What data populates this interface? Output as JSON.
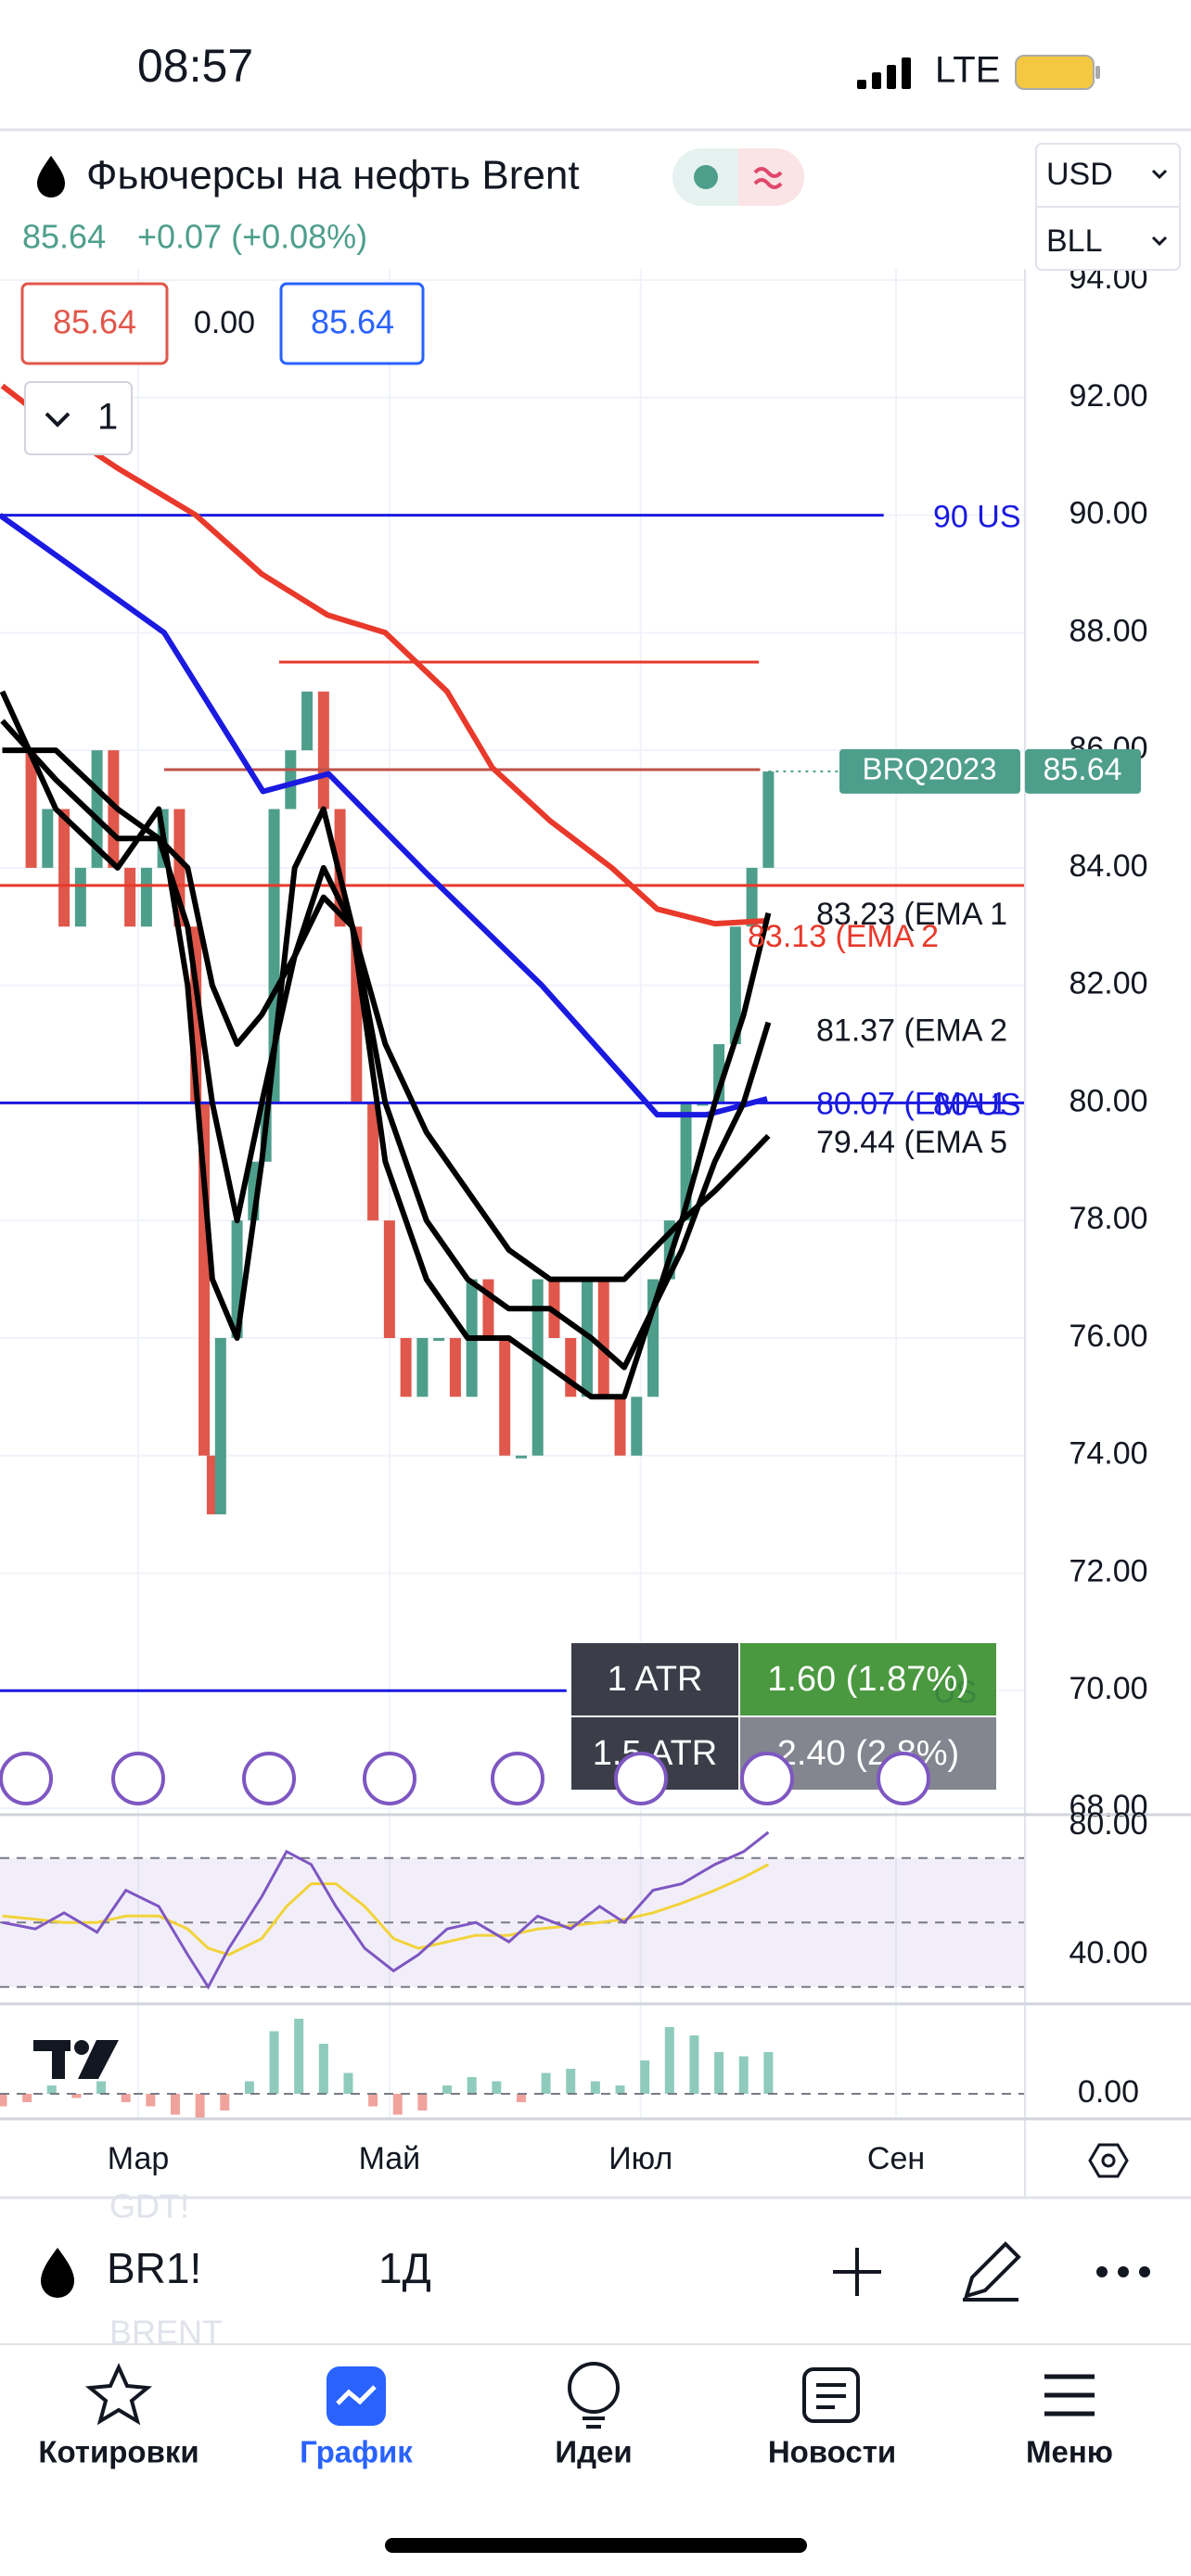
{
  "status_bar": {
    "time": "08:57",
    "network": "LTE"
  },
  "header": {
    "title": "Фьючерсы на нефть Brent",
    "last": "85.64",
    "change": "+0.07 (+0.08%)",
    "currency": "USD",
    "unit": "BLL",
    "sell": "85.64",
    "spread": "0.00",
    "buy": "85.64",
    "interval_count": "1"
  },
  "price": {
    "xlim": [
      -33.56,
      215.3
    ],
    "ylim": [
      67.89,
      94.19
    ],
    "xticks": [
      {
        "value": 0,
        "label": "Мар"
      },
      {
        "value": 61,
        "label": "Май"
      },
      {
        "value": 122,
        "label": "Июл"
      },
      {
        "value": 184,
        "label": "Сен"
      }
    ],
    "yticks": [
      {
        "value": 94,
        "label": "94.00"
      },
      {
        "value": 92,
        "label": "92.00"
      },
      {
        "value": 90,
        "label": "90.00"
      },
      {
        "value": 88,
        "label": "88.00"
      },
      {
        "value": 86,
        "label": "86.00"
      },
      {
        "value": 84,
        "label": "84.00"
      },
      {
        "value": 82,
        "label": "82.00"
      },
      {
        "value": 80,
        "label": "80.00"
      },
      {
        "value": 78,
        "label": "78.00"
      },
      {
        "value": 76,
        "label": "76.00"
      },
      {
        "value": 74,
        "label": "74.00"
      },
      {
        "value": 72,
        "label": "72.00"
      },
      {
        "value": 70,
        "label": "70.00"
      },
      {
        "value": 68,
        "label": "68.00"
      }
    ],
    "candles": {
      "up_color": "#4e9e8c",
      "down_color": "#e0574b",
      "x": [
        -30,
        -26,
        -22,
        -18,
        -14,
        -10,
        -6,
        -2,
        2,
        6,
        10,
        14,
        16,
        18,
        20,
        24,
        28,
        31,
        33,
        37,
        41,
        45,
        49,
        53,
        57,
        61,
        65,
        69,
        73,
        77,
        81,
        85,
        89,
        93,
        97,
        101,
        105,
        109,
        113,
        117,
        121,
        125,
        129,
        133,
        137,
        141,
        145,
        149,
        153
      ],
      "values": [
        86,
        84,
        85,
        83,
        84,
        86,
        84,
        83,
        84,
        85,
        83,
        80,
        74,
        73,
        76,
        78,
        79,
        80,
        85,
        86,
        87,
        85,
        83,
        80,
        78,
        76,
        75,
        76,
        76,
        75,
        77,
        76,
        74,
        74,
        77,
        76,
        75,
        77,
        75,
        74,
        75,
        77,
        78,
        80,
        80,
        81,
        83,
        84,
        85.64
      ]
    },
    "lines": [
      {
        "color": "#e8392b",
        "x": [
          -33,
          -20,
          -5,
          14,
          30,
          46,
          60,
          75,
          86,
          100,
          115,
          126,
          140,
          153
        ],
        "values": [
          92.2,
          91.5,
          90.8,
          90.0,
          89.0,
          88.3,
          88.0,
          87.0,
          85.7,
          84.8,
          84.0,
          83.3,
          83.05,
          83.1
        ]
      },
      {
        "color": "#1a1ae0",
        "x": [
          -33.6,
          -17.6,
          6.3,
          30.3,
          46.2,
          70.1,
          98,
          126,
          138,
          152.7
        ],
        "values": [
          90.0,
          89.2,
          88.0,
          85.3,
          85.6,
          83.9,
          82.0,
          79.8,
          79.8,
          80.07
        ]
      },
      {
        "color": "#000000",
        "x": [
          -33,
          -20,
          -5,
          5,
          12,
          18,
          24,
          30,
          38,
          45,
          52,
          60,
          70,
          80,
          90,
          100,
          110,
          118,
          125,
          132,
          140,
          147,
          153
        ],
        "values": [
          87,
          85,
          84,
          85,
          82,
          77,
          76,
          79,
          84,
          85,
          83,
          79,
          77,
          76,
          76,
          75.5,
          75,
          75,
          76.5,
          78,
          80,
          81.5,
          83.23
        ]
      },
      {
        "color": "#000000",
        "x": [
          -33,
          -20,
          -5,
          5,
          12,
          18,
          24,
          30,
          38,
          45,
          52,
          60,
          70,
          80,
          90,
          100,
          110,
          118,
          125,
          132,
          140,
          147,
          153
        ],
        "values": [
          86.5,
          85.5,
          84.5,
          84.5,
          83,
          80,
          78,
          80,
          82.5,
          84,
          83,
          80,
          78,
          77,
          76.5,
          76.5,
          76,
          75.5,
          76.5,
          77.5,
          79,
          80,
          81.37
        ]
      },
      {
        "color": "#000000",
        "x": [
          -33,
          -20,
          -5,
          5,
          12,
          18,
          24,
          30,
          38,
          45,
          52,
          60,
          70,
          80,
          90,
          100,
          110,
          118,
          125,
          132,
          140,
          147,
          153
        ],
        "values": [
          86,
          86,
          85,
          84.5,
          84,
          82,
          81,
          81.5,
          82.5,
          83.5,
          83,
          81,
          79.5,
          78.5,
          77.5,
          77,
          77,
          77,
          77.5,
          78,
          78.5,
          79,
          79.44
        ]
      }
    ],
    "levels": [
      {
        "value": 90,
        "x": [
          -33.56,
          181
        ],
        "color": "#1a1ae0",
        "label": "90 US"
      },
      {
        "value": 87.5,
        "x": [
          34.2,
          150.7
        ],
        "color": "#e8392b"
      },
      {
        "value": 85.67,
        "x": [
          6.3,
          151
        ],
        "color": "#c0504a"
      },
      {
        "value": 83.7,
        "x": [
          -33.56,
          215.3
        ],
        "color": "#e8392b"
      },
      {
        "value": 80,
        "x": [
          -33.56,
          215.3
        ],
        "color": "#1a1ae0",
        "label": "80 US"
      },
      {
        "value": 70,
        "x": [
          -33.56,
          104
        ],
        "color": "#1a1ae0",
        "label": "US"
      }
    ],
    "ema_labels": [
      {
        "text": "83.23 (EMA 1",
        "value": 83.18,
        "color": "#131722"
      },
      {
        "text": "83.13 (EMA 2",
        "value": 82.8,
        "color": "#e8392b"
      },
      {
        "text": "81.37 (EMA 2",
        "value": 81.2,
        "color": "#131722"
      },
      {
        "text": "80.07 (EMA 1",
        "value": 79.95,
        "color": "#1a1ae0"
      },
      {
        "text": "79.44 (EMA 5",
        "value": 79.3,
        "color": "#131722"
      }
    ],
    "tag": {
      "symbol": "BRQ2023",
      "value": 85.64,
      "label": "85.64",
      "color": "#4e9e8c"
    },
    "atr": [
      [
        "1 ATR",
        "1.60 (1.87%)"
      ],
      [
        "1.5 ATR",
        "2.40 (2.8%)"
      ]
    ]
  },
  "rsi": {
    "ylim": [
      24.75,
      83.45
    ],
    "yticks": [
      {
        "value": 80,
        "label": "80.00"
      },
      {
        "value": 40,
        "label": "40.00"
      }
    ],
    "bands": [
      70,
      50,
      30
    ],
    "x": [
      -33,
      -25,
      -18,
      -10,
      -3,
      5,
      12,
      17,
      22,
      30,
      36,
      42,
      48,
      55,
      62,
      68,
      75,
      82,
      90,
      97,
      105,
      112,
      118,
      125,
      132,
      140,
      147,
      153
    ],
    "values": [
      50,
      48,
      53,
      47,
      60,
      55,
      40,
      30,
      42,
      58,
      72,
      68,
      55,
      42,
      35,
      40,
      48,
      50,
      44,
      52,
      48,
      55,
      50,
      60,
      62,
      68,
      72,
      78
    ],
    "ma": [
      52,
      51,
      50,
      50,
      52,
      52,
      48,
      42,
      40,
      45,
      55,
      62,
      62,
      55,
      45,
      42,
      44,
      46,
      46,
      48,
      49,
      50,
      51,
      53,
      56,
      60,
      64,
      68
    ],
    "color": "#7e57c2",
    "ma_color": "#f2d33a"
  },
  "macd": {
    "ylim": [
      -0.6,
      2.156
    ],
    "yticks": [
      {
        "value": 0,
        "label": "0.00"
      }
    ],
    "x": [
      -33,
      -27,
      -21,
      -15,
      -9,
      -3,
      3,
      9,
      15,
      21,
      27,
      33,
      39,
      45,
      51,
      57,
      63,
      69,
      75,
      81,
      87,
      93,
      99,
      105,
      111,
      117,
      123,
      129,
      135,
      141,
      147,
      153
    ],
    "values": [
      -0.3,
      -0.2,
      0.2,
      -0.1,
      0.3,
      -0.2,
      -0.3,
      -0.5,
      -0.6,
      -0.4,
      0.3,
      1.5,
      1.8,
      1.2,
      0.5,
      -0.3,
      -0.5,
      -0.4,
      0.2,
      0.4,
      0.3,
      -0.2,
      0.5,
      0.6,
      0.3,
      0.2,
      0.8,
      1.6,
      1.4,
      1.0,
      0.9,
      1.0
    ]
  },
  "toolbar": {
    "symbol": "BR1!",
    "interval": "1Д",
    "ghost_top": "GDT!",
    "ghost_bottom": "BRENT"
  },
  "tabs": [
    "Котировки",
    "График",
    "Идеи",
    "Новости",
    "Меню"
  ]
}
